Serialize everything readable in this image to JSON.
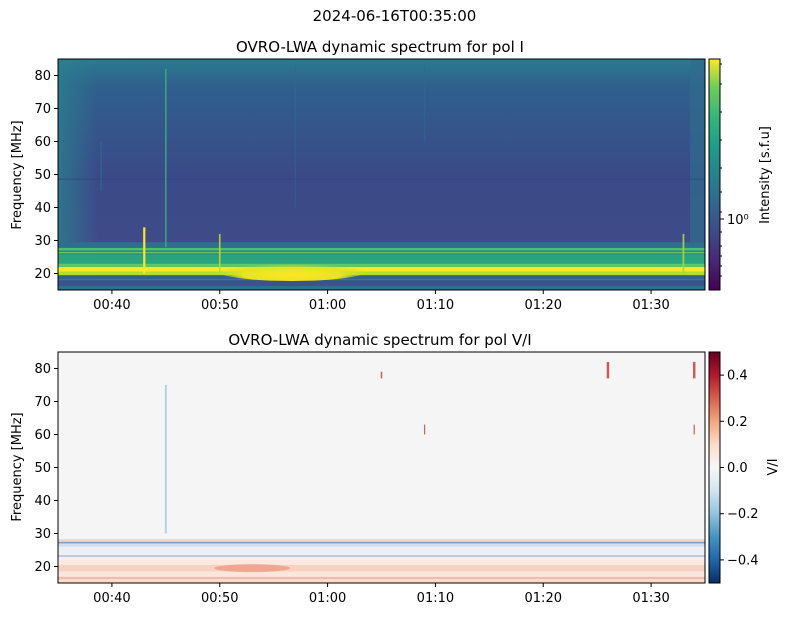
{
  "figure": {
    "suptitle": "2024-06-16T00:35:00"
  },
  "chart_data": [
    {
      "type": "heatmap",
      "title": "OVRO-LWA dynamic spectrum for pol I",
      "xlabel": "",
      "ylabel": "Frequency [MHz]",
      "colorbar_label": "Intensity [s.f.u]",
      "colorbar_tick_label": "10⁰",
      "colormap": "viridis",
      "colorbar_scale": "log",
      "x_ticks": [
        "00:40",
        "00:50",
        "01:00",
        "01:10",
        "01:20",
        "01:30"
      ],
      "y_ticks": [
        20,
        30,
        40,
        50,
        60,
        70,
        80
      ],
      "ylim": [
        15,
        85
      ],
      "xlim": [
        "00:35",
        "01:35"
      ],
      "features": {
        "bright_band_MHz": [
          19.5,
          22
        ],
        "bright_band2_MHz": [
          26,
          28
        ],
        "flux_bump_time": [
          "00:52",
          "01:01"
        ],
        "bursts_times": [
          "00:43",
          "00:45",
          "00:50",
          "01:33"
        ]
      }
    },
    {
      "type": "heatmap",
      "title": "OVRO-LWA dynamic spectrum for pol V/I",
      "xlabel": "",
      "ylabel": "Frequency [MHz]",
      "colorbar_label": "V/I",
      "colormap": "RdBu_r",
      "colorbar_ticks": [
        0.4,
        0.2,
        0.0,
        -0.2,
        -0.4
      ],
      "colorbar_tick_labels": [
        "0.4",
        "0.2",
        "0.0",
        "−0.2",
        "−0.4"
      ],
      "clim": [
        -0.5,
        0.5
      ],
      "x_ticks": [
        "00:40",
        "00:50",
        "01:00",
        "01:10",
        "01:20",
        "01:30"
      ],
      "y_ticks": [
        20,
        30,
        40,
        50,
        60,
        70,
        80
      ],
      "ylim": [
        15,
        85
      ],
      "xlim": [
        "00:35",
        "01:35"
      ]
    }
  ]
}
